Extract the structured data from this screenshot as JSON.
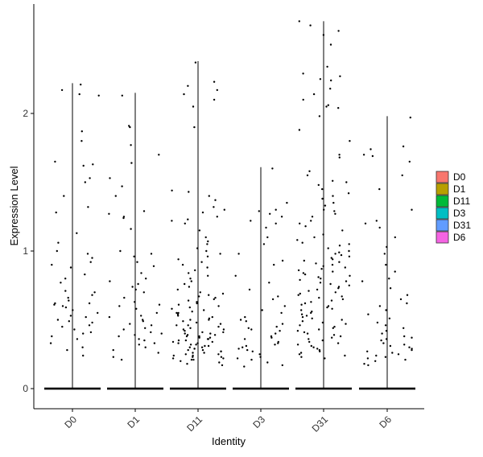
{
  "chart_data": {
    "type": "violin-jitter",
    "xlabel": "Identity",
    "ylabel": "Expression Level",
    "ylim": [
      -0.07,
      2.7
    ],
    "yticks": [
      0,
      1,
      2
    ],
    "categories": [
      "D0",
      "D1",
      "D11",
      "D3",
      "D31",
      "D6"
    ],
    "legend": {
      "placement": "right",
      "entries": [
        {
          "label": "D0",
          "color": "#F8766D"
        },
        {
          "label": "D1",
          "color": "#B79F00"
        },
        {
          "label": "D11",
          "color": "#00BA38"
        },
        {
          "label": "D3",
          "color": "#00BFC4"
        },
        {
          "label": "D31",
          "color": "#619CFF"
        },
        {
          "label": "D6",
          "color": "#F564E3"
        }
      ]
    },
    "series": [
      {
        "name": "D0",
        "max": 2.22,
        "points": [
          2.21,
          2.17,
          2.14,
          2.13,
          1.87,
          1.8,
          1.65,
          1.63,
          1.62,
          1.53,
          1.5,
          1.4,
          1.32,
          1.28,
          1.13,
          1.06,
          1.0,
          0.98,
          0.95,
          0.92,
          0.9,
          0.88,
          0.83,
          0.8,
          0.77,
          0.71,
          0.7,
          0.68,
          0.66,
          0.64,
          0.62,
          0.62,
          0.61,
          0.6,
          0.59,
          0.57,
          0.55,
          0.53,
          0.52,
          0.5,
          0.49,
          0.48,
          0.46,
          0.45,
          0.43,
          0.41,
          0.4,
          0.38,
          0.36,
          0.33,
          0.3,
          0.28,
          0.24
        ]
      },
      {
        "name": "D1",
        "max": 2.15,
        "points": [
          2.13,
          1.91,
          1.9,
          1.77,
          1.7,
          1.64,
          1.53,
          1.47,
          1.4,
          1.29,
          1.27,
          1.25,
          1.24,
          1.16,
          1.0,
          0.98,
          0.96,
          0.92,
          0.89,
          0.84,
          0.8,
          0.78,
          0.76,
          0.74,
          0.72,
          0.7,
          0.66,
          0.63,
          0.61,
          0.6,
          0.58,
          0.55,
          0.53,
          0.52,
          0.5,
          0.49,
          0.47,
          0.46,
          0.44,
          0.43,
          0.41,
          0.4,
          0.39,
          0.38,
          0.36,
          0.35,
          0.33,
          0.32,
          0.3,
          0.28,
          0.26,
          0.23,
          0.21
        ]
      },
      {
        "name": "D11",
        "max": 2.38,
        "points": [
          2.37,
          2.23,
          2.2,
          2.17,
          2.14,
          2.1,
          2.05,
          1.9,
          1.44,
          1.43,
          1.4,
          1.37,
          1.32,
          1.3,
          1.28,
          1.25,
          1.23,
          1.22,
          1.2,
          1.15,
          1.1,
          1.07,
          1.05,
          1.02,
          1.0,
          0.98,
          0.96,
          0.94,
          0.92,
          0.9,
          0.88,
          0.86,
          0.84,
          0.82,
          0.8,
          0.78,
          0.76,
          0.74,
          0.72,
          0.7,
          0.69,
          0.68,
          0.67,
          0.66,
          0.65,
          0.64,
          0.63,
          0.62,
          0.61,
          0.6,
          0.59,
          0.58,
          0.57,
          0.56,
          0.55,
          0.55,
          0.54,
          0.53,
          0.52,
          0.51,
          0.5,
          0.5,
          0.49,
          0.48,
          0.47,
          0.46,
          0.46,
          0.45,
          0.44,
          0.43,
          0.43,
          0.42,
          0.41,
          0.41,
          0.4,
          0.4,
          0.39,
          0.39,
          0.38,
          0.38,
          0.37,
          0.37,
          0.36,
          0.36,
          0.35,
          0.35,
          0.34,
          0.34,
          0.33,
          0.33,
          0.32,
          0.32,
          0.31,
          0.31,
          0.3,
          0.3,
          0.29,
          0.29,
          0.28,
          0.28,
          0.27,
          0.27,
          0.26,
          0.26,
          0.25,
          0.25,
          0.24,
          0.24,
          0.23,
          0.23,
          0.22,
          0.22,
          0.21,
          0.21,
          0.2,
          0.19,
          0.18,
          0.17
        ]
      },
      {
        "name": "D3",
        "max": 1.61,
        "points": [
          1.6,
          1.35,
          1.3,
          1.29,
          1.27,
          1.25,
          1.22,
          1.2,
          1.17,
          1.1,
          1.05,
          0.98,
          0.93,
          0.9,
          0.82,
          0.77,
          0.72,
          0.67,
          0.65,
          0.6,
          0.57,
          0.55,
          0.52,
          0.5,
          0.49,
          0.47,
          0.45,
          0.44,
          0.43,
          0.42,
          0.4,
          0.38,
          0.37,
          0.36,
          0.34,
          0.33,
          0.32,
          0.31,
          0.3,
          0.29,
          0.28,
          0.27,
          0.25,
          0.23,
          0.22,
          0.21,
          0.19,
          0.17,
          0.16
        ]
      },
      {
        "name": "D31",
        "max": 2.67,
        "points": [
          2.67,
          2.64,
          2.6,
          2.57,
          2.5,
          2.34,
          2.29,
          2.27,
          2.25,
          2.24,
          2.18,
          2.14,
          2.1,
          2.06,
          2.05,
          2.04,
          1.98,
          1.88,
          1.8,
          1.7,
          1.68,
          1.58,
          1.55,
          1.51,
          1.5,
          1.48,
          1.45,
          1.42,
          1.4,
          1.38,
          1.35,
          1.33,
          1.3,
          1.29,
          1.27,
          1.25,
          1.22,
          1.2,
          1.18,
          1.15,
          1.12,
          1.1,
          1.08,
          1.06,
          1.05,
          1.04,
          1.02,
          1.0,
          0.99,
          0.98,
          0.97,
          0.96,
          0.95,
          0.94,
          0.93,
          0.92,
          0.91,
          0.9,
          0.89,
          0.88,
          0.87,
          0.86,
          0.85,
          0.84,
          0.83,
          0.82,
          0.81,
          0.8,
          0.79,
          0.78,
          0.77,
          0.76,
          0.75,
          0.74,
          0.73,
          0.72,
          0.71,
          0.7,
          0.69,
          0.68,
          0.67,
          0.66,
          0.65,
          0.64,
          0.63,
          0.62,
          0.61,
          0.6,
          0.59,
          0.58,
          0.57,
          0.56,
          0.55,
          0.54,
          0.53,
          0.52,
          0.51,
          0.5,
          0.49,
          0.48,
          0.47,
          0.46,
          0.45,
          0.44,
          0.43,
          0.42,
          0.41,
          0.4,
          0.39,
          0.38,
          0.37,
          0.36,
          0.35,
          0.34,
          0.33,
          0.32,
          0.31,
          0.3,
          0.29,
          0.28,
          0.27,
          0.26,
          0.25,
          0.24,
          0.23,
          0.22
        ]
      },
      {
        "name": "D6",
        "max": 1.98,
        "points": [
          1.97,
          1.76,
          1.74,
          1.7,
          1.69,
          1.65,
          1.55,
          1.45,
          1.3,
          1.22,
          1.2,
          1.17,
          1.1,
          1.03,
          0.98,
          0.9,
          0.85,
          0.8,
          0.78,
          0.73,
          0.68,
          0.65,
          0.62,
          0.6,
          0.57,
          0.54,
          0.51,
          0.48,
          0.46,
          0.44,
          0.42,
          0.4,
          0.38,
          0.37,
          0.36,
          0.35,
          0.33,
          0.32,
          0.31,
          0.3,
          0.29,
          0.28,
          0.27,
          0.26,
          0.25,
          0.24,
          0.23,
          0.22,
          0.21,
          0.2,
          0.18,
          0.17
        ]
      }
    ]
  }
}
